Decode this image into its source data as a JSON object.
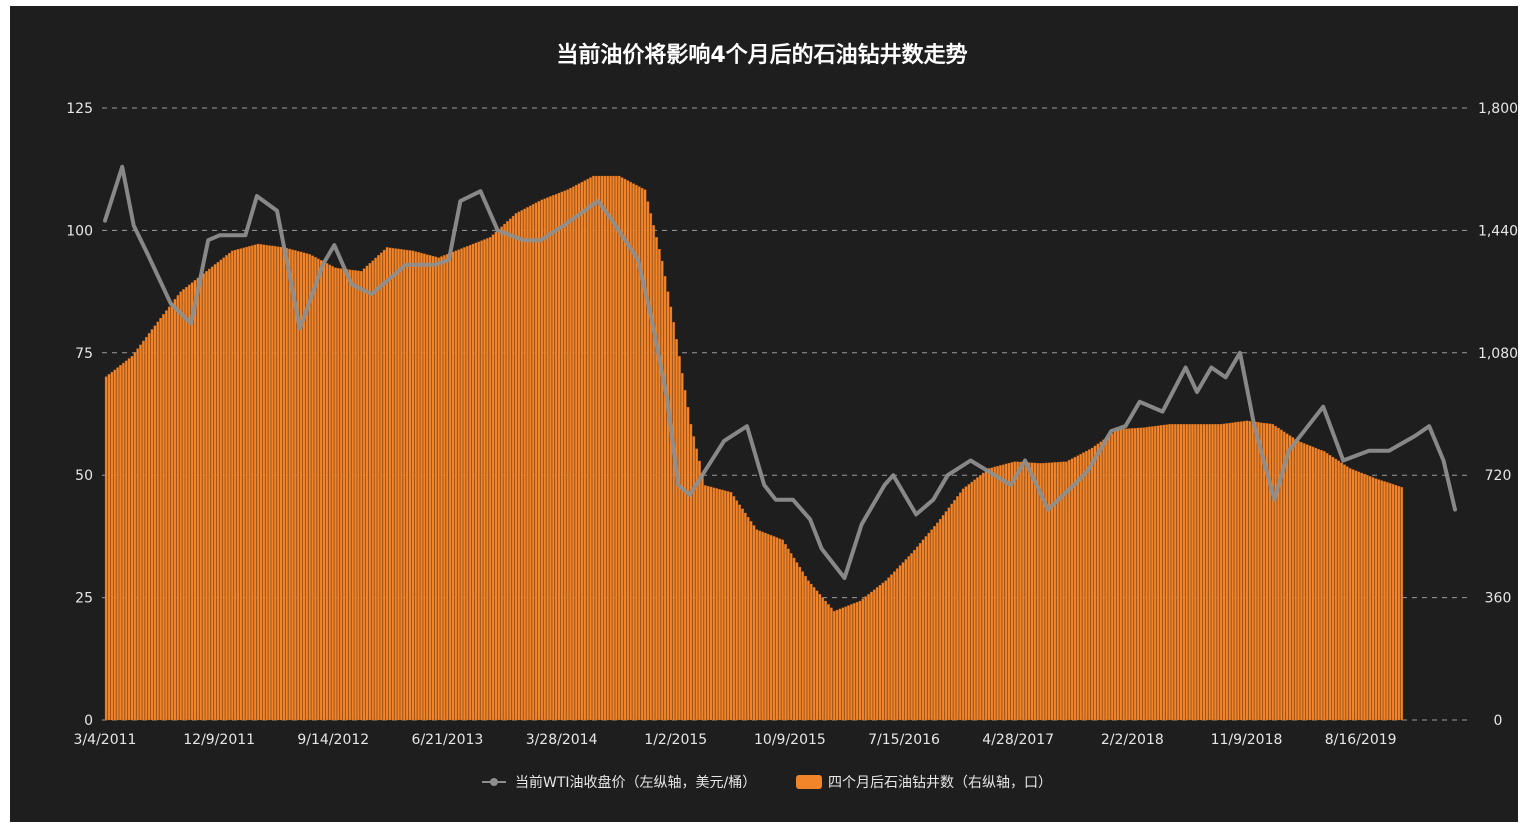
{
  "chart_data": {
    "type": "bar+line",
    "title": "当前油价将影响4个月后的石油钻井数走势",
    "colors": {
      "bars": "#f0852a",
      "bar_edge": "#b85a14",
      "line": "#8e8e8e",
      "background": "#1e1e1e",
      "grid": "#9a9a9a",
      "text": "#e6e6e6"
    },
    "grid": true,
    "legend_position": "bottom-center",
    "y_left": {
      "ticks": [
        "125",
        "100",
        "75",
        "50",
        "25",
        "0"
      ],
      "ylim": [
        0,
        125
      ]
    },
    "y_right": {
      "ticks": [
        "1,800",
        "1,440",
        "1,080",
        "720",
        "360",
        "0"
      ],
      "ylim": [
        0,
        1800
      ]
    },
    "x_ticks": [
      "3/4/2011",
      "12/9/2011",
      "9/14/2012",
      "6/21/2013",
      "3/28/2014",
      "1/2/2015",
      "10/9/2015",
      "7/15/2016",
      "4/28/2017",
      "2/2/2018",
      "11/9/2018",
      "8/16/2019"
    ],
    "x_range": [
      "2011-03-04",
      "2020-03-13"
    ],
    "series": [
      {
        "name": "当前WTI油收盘价（左纵轴，美元/桶）",
        "axis": "left",
        "type": "line",
        "x": [
          "2011-03-04",
          "2011-04-15",
          "2011-05-13",
          "2011-06-17",
          "2011-08-12",
          "2011-09-30",
          "2011-11-11",
          "2011-12-09",
          "2012-02-10",
          "2012-03-09",
          "2012-04-27",
          "2012-06-22",
          "2012-08-17",
          "2012-09-14",
          "2012-10-26",
          "2012-12-14",
          "2013-03-08",
          "2013-05-17",
          "2013-06-21",
          "2013-07-19",
          "2013-09-06",
          "2013-10-18",
          "2013-12-20",
          "2014-01-31",
          "2014-03-28",
          "2014-06-20",
          "2014-07-25",
          "2014-09-26",
          "2014-10-31",
          "2014-12-05",
          "2015-01-02",
          "2015-01-30",
          "2015-04-24",
          "2015-06-19",
          "2015-07-31",
          "2015-08-28",
          "2015-10-09",
          "2015-11-20",
          "2015-12-18",
          "2016-02-12",
          "2016-03-25",
          "2016-05-20",
          "2016-06-10",
          "2016-07-15",
          "2016-08-05",
          "2016-09-16",
          "2016-10-21",
          "2016-12-16",
          "2017-03-24",
          "2017-04-28",
          "2017-06-23",
          "2017-08-25",
          "2017-09-29",
          "2017-11-24",
          "2017-12-29",
          "2018-02-02",
          "2018-03-30",
          "2018-05-25",
          "2018-06-22",
          "2018-07-27",
          "2018-08-31",
          "2018-10-05",
          "2018-11-09",
          "2018-12-28",
          "2019-02-01",
          "2019-04-26",
          "2019-06-14",
          "2019-08-16",
          "2019-10-04",
          "2019-12-06",
          "2020-01-10",
          "2020-02-14",
          "2020-03-13"
        ],
        "values": [
          102,
          113,
          101,
          95,
          85,
          81,
          98,
          99,
          99,
          107,
          104,
          80,
          93,
          97,
          89,
          87,
          93,
          93,
          94,
          106,
          108,
          100,
          98,
          98,
          101,
          106,
          102,
          94,
          81,
          66,
          48,
          46,
          57,
          60,
          48,
          45,
          45,
          41,
          35,
          29,
          40,
          48,
          50,
          45,
          42,
          45,
          50,
          53,
          48,
          53,
          43,
          48,
          51,
          59,
          60,
          65,
          63,
          72,
          67,
          72,
          70,
          75,
          60,
          45,
          55,
          64,
          53,
          55,
          55,
          58,
          60,
          53,
          43
        ]
      },
      {
        "name": "四个月后石油钻井数（右纵轴，口）",
        "axis": "right",
        "type": "bar",
        "x": [
          "2011-03-04",
          "2011-05-06",
          "2011-07-01",
          "2011-09-02",
          "2011-11-04",
          "2012-01-06",
          "2012-03-09",
          "2012-05-11",
          "2012-07-13",
          "2012-09-14",
          "2012-11-16",
          "2013-01-18",
          "2013-03-22",
          "2013-05-24",
          "2013-07-26",
          "2013-09-27",
          "2013-11-29",
          "2014-01-31",
          "2014-04-04",
          "2014-06-06",
          "2014-08-08",
          "2014-10-10",
          "2014-11-21",
          "2014-12-19",
          "2015-01-30",
          "2015-03-06",
          "2015-05-08",
          "2015-07-10",
          "2015-09-11",
          "2015-11-13",
          "2016-01-15",
          "2016-03-18",
          "2016-05-20",
          "2016-07-22",
          "2016-09-23",
          "2016-11-25",
          "2017-01-27",
          "2017-03-31",
          "2017-06-02",
          "2017-08-04",
          "2017-10-06",
          "2017-12-08",
          "2018-02-09",
          "2018-04-13",
          "2018-06-15",
          "2018-08-17",
          "2018-10-19",
          "2018-12-21",
          "2019-02-22",
          "2019-04-26",
          "2019-06-28",
          "2019-08-30",
          "2019-11-01"
        ],
        "values": [
          1010,
          1070,
          1160,
          1260,
          1320,
          1380,
          1400,
          1390,
          1370,
          1330,
          1320,
          1390,
          1380,
          1360,
          1390,
          1420,
          1490,
          1530,
          1560,
          1600,
          1600,
          1560,
          1350,
          1170,
          870,
          690,
          670,
          560,
          530,
          410,
          320,
          350,
          410,
          490,
          580,
          680,
          740,
          760,
          755,
          760,
          800,
          855,
          860,
          870,
          870,
          870,
          880,
          870,
          820,
          790,
          740,
          710,
          685
        ]
      }
    ]
  }
}
